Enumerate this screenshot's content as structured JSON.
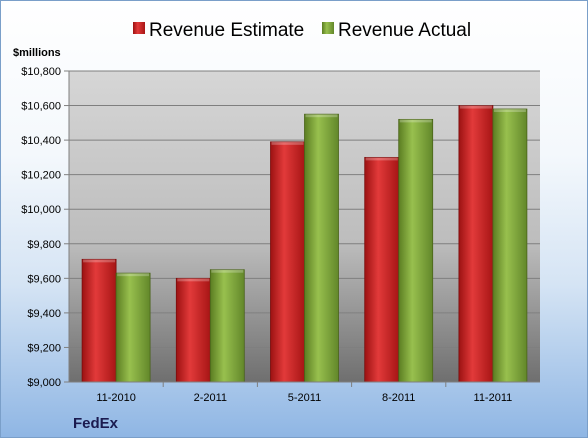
{
  "chart_data": {
    "type": "bar",
    "company": "FedEx",
    "ylabel": "$millions",
    "categories": [
      "11-2010",
      "2-2011",
      "5-2011",
      "8-2011",
      "11-2011"
    ],
    "series": [
      {
        "name": "Revenue Estimate",
        "values": [
          9710,
          9600,
          10390,
          10300,
          10600
        ],
        "color": "#d42424"
      },
      {
        "name": "Revenue Actual",
        "values": [
          9630,
          9650,
          10550,
          10520,
          10580
        ],
        "color": "#7da53a"
      }
    ],
    "ylim": [
      9000,
      10800
    ],
    "yticks": [
      "$9,000",
      "$9,200",
      "$9,400",
      "$9,600",
      "$9,800",
      "$10,000",
      "$10,200",
      "$10,400",
      "$10,600",
      "$10,800"
    ],
    "grid": true,
    "legend": "top"
  }
}
